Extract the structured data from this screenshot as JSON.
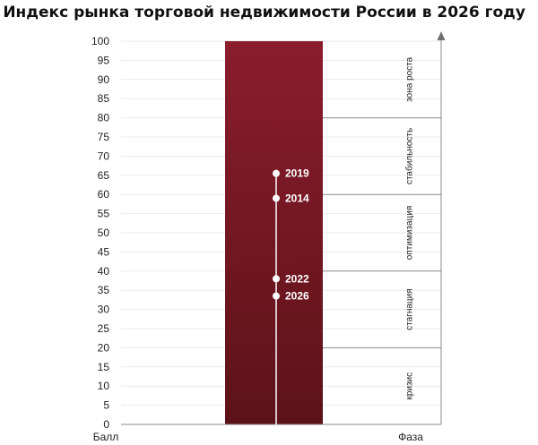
{
  "chart_data": {
    "type": "bar",
    "title": "Индекс рынка торговой недвижимости России в 2026 году",
    "xlabel": "Балл",
    "right_axis_label": "Фаза",
    "ylim": [
      0,
      100
    ],
    "yticks": [
      0,
      5,
      10,
      15,
      20,
      25,
      30,
      35,
      40,
      45,
      50,
      55,
      60,
      65,
      70,
      75,
      80,
      85,
      90,
      95,
      100
    ],
    "bar": {
      "from": 0,
      "to": 100
    },
    "bar_colors": {
      "top": "#8a1d2c",
      "bottom": "#5c1219"
    },
    "years": [
      {
        "label": "2019",
        "value": 65.5
      },
      {
        "label": "2014",
        "value": 59
      },
      {
        "label": "2022",
        "value": 38
      },
      {
        "label": "2026",
        "value": 33.5
      }
    ],
    "phases": [
      {
        "label": "зона роста",
        "from": 80,
        "to": 100
      },
      {
        "label": "стабильность",
        "from": 60,
        "to": 80
      },
      {
        "label": "оптимизация",
        "from": 40,
        "to": 60
      },
      {
        "label": "стагнация",
        "from": 20,
        "to": 40
      },
      {
        "label": "кризис",
        "from": 0,
        "to": 20
      }
    ],
    "grid": true
  }
}
